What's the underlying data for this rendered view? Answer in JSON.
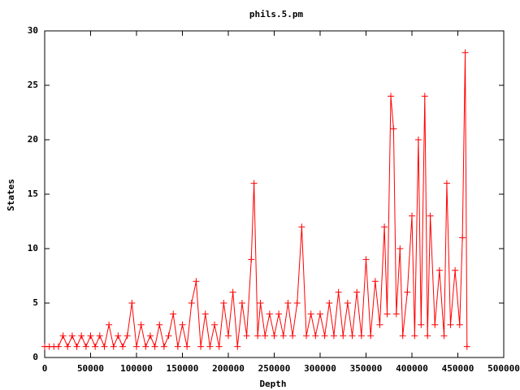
{
  "chart_data": {
    "type": "line",
    "title": "phils.5.pm",
    "x_label": "Depth",
    "y_label": "States",
    "x": [
      0,
      5000,
      10000,
      15000,
      20000,
      25000,
      30000,
      35000,
      40000,
      45000,
      50000,
      55000,
      60000,
      65000,
      70000,
      75000,
      80000,
      85000,
      90000,
      95000,
      100000,
      105000,
      110000,
      115000,
      120000,
      125000,
      130000,
      135000,
      140000,
      145000,
      150000,
      155000,
      160000,
      165000,
      170000,
      175000,
      180000,
      185000,
      190000,
      195000,
      200000,
      205000,
      210000,
      215000,
      220000,
      225000,
      228000,
      232000,
      235000,
      240000,
      245000,
      250000,
      255000,
      260000,
      265000,
      270000,
      275000,
      280000,
      285000,
      290000,
      295000,
      300000,
      305000,
      310000,
      315000,
      320000,
      325000,
      330000,
      335000,
      340000,
      345000,
      350000,
      355000,
      360000,
      365000,
      370000,
      373000,
      377000,
      380000,
      383000,
      387000,
      390000,
      395000,
      400000,
      403000,
      407000,
      410000,
      414000,
      417000,
      420000,
      425000,
      430000,
      435000,
      438000,
      442000,
      447000,
      452000,
      455000,
      458000,
      460000
    ],
    "series": [
      {
        "color": "#ff0000",
        "values": [
          1,
          1,
          1,
          1,
          2,
          1,
          2,
          1,
          2,
          1,
          2,
          1,
          2,
          1,
          3,
          1,
          2,
          1,
          2,
          5,
          1,
          3,
          1,
          2,
          1,
          3,
          1,
          2,
          4,
          1,
          3,
          1,
          5,
          7,
          1,
          4,
          1,
          3,
          1,
          5,
          2,
          6,
          1,
          5,
          2,
          9,
          16,
          2,
          5,
          2,
          4,
          2,
          4,
          2,
          5,
          2,
          5,
          12,
          2,
          4,
          2,
          4,
          2,
          5,
          2,
          6,
          2,
          5,
          2,
          6,
          2,
          9,
          2,
          7,
          3,
          12,
          4,
          24,
          21,
          4,
          10,
          2,
          6,
          13,
          2,
          20,
          3,
          24,
          2,
          13,
          3,
          8,
          2,
          16,
          3,
          8,
          3,
          11,
          28,
          1
        ]
      }
    ],
    "xlim": [
      0,
      500000
    ],
    "ylim": [
      0,
      30
    ],
    "xticks": [
      0,
      50000,
      100000,
      150000,
      200000,
      250000,
      300000,
      350000,
      400000,
      450000,
      500000
    ],
    "yticks": [
      0,
      5,
      10,
      15,
      20,
      25,
      30
    ]
  }
}
